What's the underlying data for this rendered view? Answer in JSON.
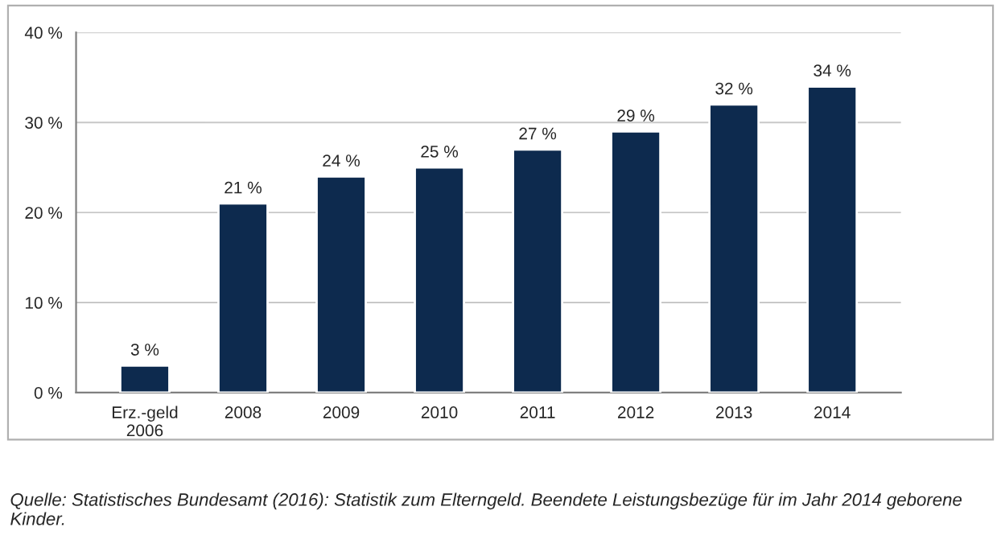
{
  "chart_data": {
    "type": "bar",
    "categories": [
      "Erz.-geld\n2006",
      "2008",
      "2009",
      "2010",
      "2011",
      "2012",
      "2013",
      "2014"
    ],
    "values": [
      3,
      21,
      24,
      25,
      27,
      29,
      32,
      34
    ],
    "value_labels": [
      "3 %",
      "21 %",
      "24 %",
      "25 %",
      "27 %",
      "29 %",
      "32 %",
      "34 %"
    ],
    "color": "#0d2a4e",
    "ylim": [
      0,
      40
    ],
    "yticks": [
      {
        "value": 0,
        "label": "0 %"
      },
      {
        "value": 10,
        "label": "10 %"
      },
      {
        "value": 20,
        "label": "20 %"
      },
      {
        "value": 30,
        "label": "30 %"
      },
      {
        "value": 40,
        "label": "40 %"
      }
    ],
    "grid": "y",
    "annotations": [
      "Quelle: Statistisches Bundesamt (2016): Statistik zum Elterngeld. Beendete Leistungsbezüge für im Jahr 2014 geborene Kinder."
    ]
  }
}
